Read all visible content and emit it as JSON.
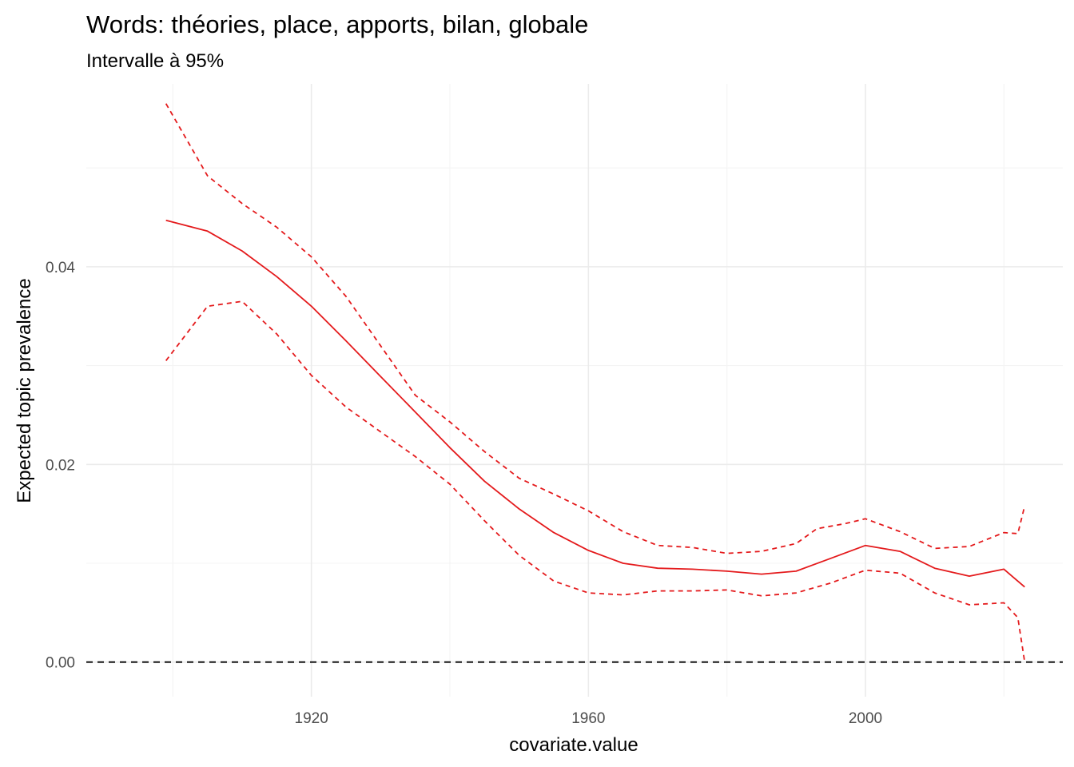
{
  "chart_data": {
    "type": "line",
    "title": "Words: théories, place, apports, bilan, globale",
    "subtitle": "Intervalle à 95%",
    "xlabel": "covariate.value",
    "ylabel": "Expected topic prevalence",
    "xlim": [
      1887.5,
      2028.5
    ],
    "ylim": [
      -0.0035,
      0.0585
    ],
    "x_ticks": [
      1920,
      1960,
      2000
    ],
    "x_tick_labels": [
      "1920",
      "1960",
      "2000"
    ],
    "x_minor_ticks": [
      1900,
      1940,
      1980,
      2020
    ],
    "y_ticks": [
      0,
      0.02,
      0.04
    ],
    "y_tick_labels": [
      "0.00",
      "0.02",
      "0.04"
    ],
    "y_minor_ticks": [
      0.01,
      0.03,
      0.05
    ],
    "grid": true,
    "reference_line": 0,
    "colors": {
      "estimate": "#e41a1c",
      "reference": "#000000",
      "grid_major": "#ebebeb",
      "grid_minor": "#f4f4f4"
    },
    "series": [
      {
        "role": "estimate",
        "x": [
          1899,
          1905,
          1910,
          1915,
          1920,
          1925,
          1930,
          1935,
          1940,
          1945,
          1950,
          1955,
          1960,
          1965,
          1970,
          1975,
          1980,
          1985,
          1990,
          1995,
          2000,
          2005,
          2010,
          2015,
          2020,
          2023
        ],
        "values": [
          0.0447,
          0.0436,
          0.0416,
          0.039,
          0.036,
          0.0325,
          0.0289,
          0.0253,
          0.0217,
          0.0183,
          0.0155,
          0.0131,
          0.0113,
          0.01,
          0.0095,
          0.0094,
          0.0092,
          0.0089,
          0.0092,
          0.0105,
          0.0118,
          0.0112,
          0.0095,
          0.0087,
          0.0094,
          0.0076
        ]
      },
      {
        "role": "upper",
        "x": [
          1899,
          1905,
          1910,
          1915,
          1920,
          1925,
          1930,
          1935,
          1940,
          1945,
          1950,
          1955,
          1960,
          1965,
          1970,
          1975,
          1980,
          1985,
          1990,
          1993,
          1997,
          2000,
          2005,
          2010,
          2015,
          2020,
          2022,
          2023
        ],
        "values": [
          0.0565,
          0.0492,
          0.0464,
          0.044,
          0.041,
          0.037,
          0.032,
          0.027,
          0.0243,
          0.0213,
          0.0186,
          0.017,
          0.0153,
          0.0132,
          0.0118,
          0.0116,
          0.011,
          0.0112,
          0.012,
          0.0135,
          0.014,
          0.0145,
          0.0132,
          0.0115,
          0.0117,
          0.0131,
          0.013,
          0.0158
        ]
      },
      {
        "role": "lower",
        "x": [
          1899,
          1905,
          1910,
          1915,
          1920,
          1925,
          1930,
          1935,
          1940,
          1945,
          1950,
          1955,
          1960,
          1965,
          1970,
          1975,
          1980,
          1985,
          1990,
          1995,
          2000,
          2005,
          2010,
          2015,
          2020,
          2022,
          2023
        ],
        "values": [
          0.0305,
          0.036,
          0.0365,
          0.0332,
          0.029,
          0.0258,
          0.0233,
          0.0208,
          0.018,
          0.0143,
          0.0108,
          0.0082,
          0.007,
          0.0068,
          0.0072,
          0.0072,
          0.0073,
          0.0067,
          0.007,
          0.008,
          0.0093,
          0.009,
          0.007,
          0.0058,
          0.006,
          0.0045,
          0.0
        ]
      }
    ]
  }
}
